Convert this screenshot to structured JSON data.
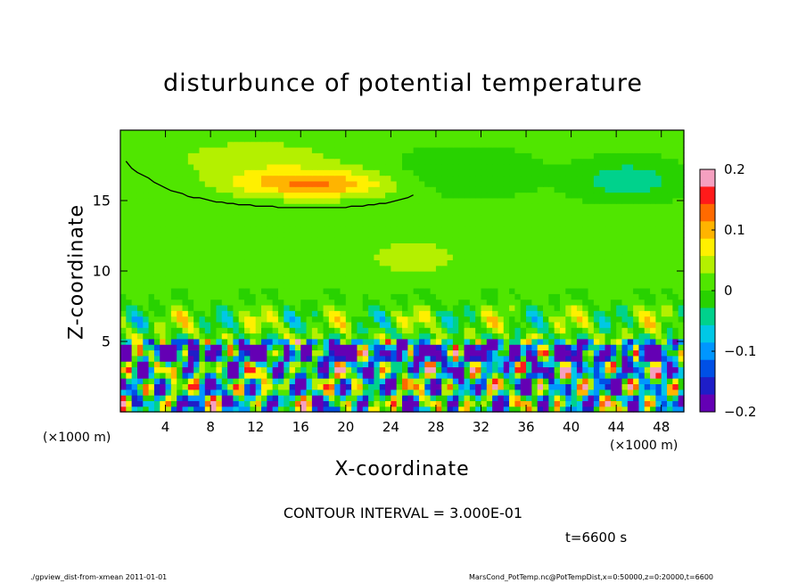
{
  "chart_data": {
    "type": "heatmap",
    "title": "disturbunce of potential temperature",
    "xlabel": "X-coordinate",
    "ylabel": "Z-coordinate",
    "x_unit_label": "(×1000 m)",
    "y_unit_label": "(×1000 m)",
    "xlim": [
      0,
      50
    ],
    "ylim": [
      0,
      20
    ],
    "x_ticks": [
      "4",
      "8",
      "12",
      "16",
      "20",
      "24",
      "28",
      "32",
      "36",
      "40",
      "44",
      "48"
    ],
    "y_ticks": [
      "5",
      "10",
      "15"
    ],
    "colorbar": {
      "range": [
        -0.2,
        0.2
      ],
      "tick_labels": [
        "0.2",
        "0.1",
        "0",
        "−0.1",
        "−0.2"
      ],
      "colors": [
        "#f5a0c0",
        "#ff1a1a",
        "#ff6a00",
        "#ffb400",
        "#fff000",
        "#b4f000",
        "#50e600",
        "#28d200",
        "#00d28c",
        "#00c8e6",
        "#0096ff",
        "#0050e6",
        "#1e1ec8",
        "#6400b4"
      ]
    },
    "contour_interval_text": "CONTOUR INTERVAL = 3.000E-01",
    "time_text": "t=6600 s"
  },
  "footer": {
    "left": "./gpview_dist-from-xmean  2011-01-01",
    "right": "MarsCond_PotTemp.nc@PotTempDist,x=0:50000,z=0:20000,t=6600"
  }
}
